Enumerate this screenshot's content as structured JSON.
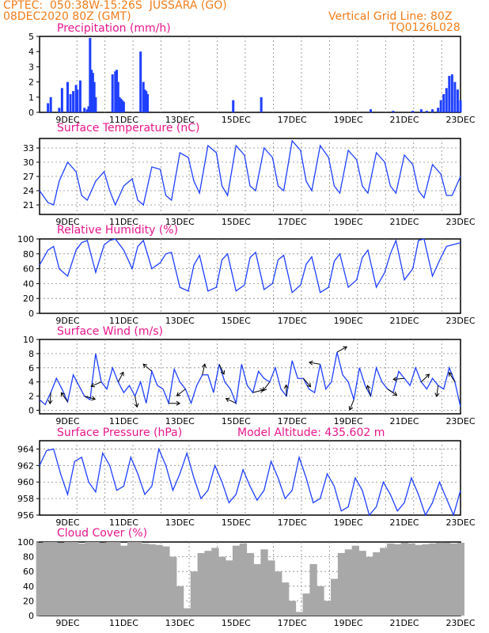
{
  "header": {
    "line1": "CPTEC:  050:38W-15:26S  JUSSARA (GO)",
    "line2": "08DEC2020 80Z (GMT)",
    "right1": "Vertical Grid Line: 80Z",
    "right2": "TQ0126L028"
  },
  "model_altitude": "Model Altitude: 435.602 m",
  "colors": {
    "header": "#f07d1a",
    "title": "#e8168c",
    "series": "#1f3fff",
    "cloud": "#a8a8a8"
  },
  "chart_data": [
    {
      "type": "bar",
      "title": "Precipitation (mm/h)",
      "x_tick_labels": [
        "9DEC",
        "11DEC",
        "13DEC",
        "15DEC",
        "17DEC",
        "19DEC",
        "21DEC",
        "23DEC"
      ],
      "yticks": [
        0,
        1,
        2,
        3,
        4,
        5
      ],
      "ylim": [
        0,
        5
      ],
      "x_days": [
        8.3,
        8.4,
        8.7,
        8.8,
        9.0,
        9.1,
        9.2,
        9.3,
        9.35,
        9.45,
        9.6,
        9.7,
        9.75,
        9.8,
        9.85,
        9.9,
        9.95,
        10.0,
        10.6,
        10.7,
        10.75,
        10.8,
        10.85,
        10.9,
        10.95,
        11.0,
        11.6,
        11.7,
        11.75,
        11.8,
        11.85,
        14.9,
        15.9,
        19.8,
        20.6,
        21.3,
        21.6,
        21.8,
        22.0,
        22.2,
        22.3,
        22.4,
        22.5,
        22.6,
        22.7,
        22.8,
        22.9,
        23.0
      ],
      "values": [
        0.6,
        1.0,
        0.3,
        1.6,
        2.0,
        1.2,
        1.4,
        1.8,
        1.5,
        2.1,
        0.3,
        0.2,
        0.4,
        4.9,
        2.8,
        2.6,
        2.0,
        1.0,
        2.5,
        2.7,
        2.8,
        2.0,
        1.0,
        0.9,
        0.8,
        0.7,
        4.0,
        2.0,
        1.5,
        1.4,
        1.2,
        0.8,
        1.0,
        0.2,
        0.1,
        0.1,
        0.2,
        0.1,
        0.2,
        0.3,
        0.8,
        1.2,
        1.6,
        2.4,
        2.5,
        2.0,
        1.5,
        0.8
      ]
    },
    {
      "type": "line",
      "title": "Surface Temperature (nC)",
      "x_tick_labels": [
        "9DEC",
        "11DEC",
        "13DEC",
        "15DEC",
        "17DEC",
        "19DEC",
        "21DEC",
        "23DEC"
      ],
      "yticks": [
        21,
        24,
        27,
        30,
        33
      ],
      "ylim": [
        19,
        35
      ],
      "x_days": [
        8.0,
        8.3,
        8.5,
        8.7,
        9.0,
        9.3,
        9.5,
        9.7,
        10.0,
        10.3,
        10.5,
        10.7,
        11.0,
        11.3,
        11.5,
        11.7,
        12.0,
        12.3,
        12.5,
        12.7,
        13.0,
        13.3,
        13.5,
        13.7,
        14.0,
        14.3,
        14.5,
        14.7,
        15.0,
        15.3,
        15.5,
        15.7,
        16.0,
        16.3,
        16.5,
        16.7,
        17.0,
        17.3,
        17.5,
        17.7,
        18.0,
        18.3,
        18.5,
        18.7,
        19.0,
        19.3,
        19.5,
        19.7,
        20.0,
        20.3,
        20.5,
        20.7,
        21.0,
        21.3,
        21.5,
        21.7,
        22.0,
        22.3,
        22.5,
        22.7,
        23.0
      ],
      "values": [
        24.0,
        21.5,
        21.0,
        26.0,
        30.0,
        28.0,
        23.0,
        22.0,
        26.0,
        28.0,
        24.0,
        21.0,
        25.0,
        26.5,
        22.0,
        21.0,
        29.0,
        28.5,
        23.0,
        22.0,
        32.0,
        31.0,
        26.0,
        23.5,
        33.5,
        32.0,
        25.0,
        23.0,
        33.5,
        31.5,
        25.0,
        24.0,
        33.0,
        31.0,
        25.0,
        24.0,
        34.5,
        32.5,
        26.0,
        24.0,
        33.5,
        31.0,
        25.0,
        23.5,
        32.5,
        30.5,
        25.0,
        23.5,
        32.0,
        30.0,
        25.0,
        23.5,
        31.5,
        29.5,
        24.0,
        22.5,
        29.5,
        27.5,
        23.0,
        23.0,
        27.0
      ]
    },
    {
      "type": "line",
      "title": "Relative Humidity (%)",
      "x_tick_labels": [
        "9DEC",
        "11DEC",
        "13DEC",
        "15DEC",
        "17DEC",
        "19DEC",
        "21DEC",
        "23DEC"
      ],
      "yticks": [
        0,
        20,
        40,
        60,
        80,
        100
      ],
      "ylim": [
        0,
        100
      ],
      "x_days": [
        8.0,
        8.3,
        8.5,
        8.7,
        9.0,
        9.3,
        9.5,
        9.7,
        10.0,
        10.3,
        10.5,
        10.7,
        11.0,
        11.3,
        11.5,
        11.7,
        12.0,
        12.3,
        12.5,
        12.7,
        13.0,
        13.3,
        13.5,
        13.7,
        14.0,
        14.3,
        14.5,
        14.7,
        15.0,
        15.3,
        15.5,
        15.7,
        16.0,
        16.3,
        16.5,
        16.7,
        17.0,
        17.3,
        17.5,
        17.7,
        18.0,
        18.3,
        18.5,
        18.7,
        19.0,
        19.3,
        19.5,
        19.7,
        20.0,
        20.3,
        20.5,
        20.7,
        21.0,
        21.3,
        21.5,
        21.7,
        22.0,
        22.3,
        22.5,
        22.7,
        23.0
      ],
      "values": [
        65.0,
        85.0,
        90.0,
        60.0,
        50.0,
        85.0,
        95.0,
        98.0,
        55.0,
        92.0,
        98.0,
        100.0,
        85.0,
        60.0,
        90.0,
        98.0,
        60.0,
        68.0,
        80.0,
        82.0,
        35.0,
        30.0,
        65.0,
        78.0,
        30.0,
        35.0,
        72.0,
        80.0,
        30.0,
        38.0,
        75.0,
        82.0,
        32.0,
        40.0,
        72.0,
        78.0,
        28.0,
        38.0,
        66.0,
        76.0,
        28.0,
        35.0,
        70.0,
        80.0,
        35.0,
        45.0,
        75.0,
        85.0,
        35.0,
        55.0,
        80.0,
        98.0,
        45.0,
        60.0,
        98.0,
        100.0,
        50.0,
        75.0,
        90.0,
        92.0,
        95.0
      ]
    },
    {
      "type": "line",
      "title": "Surface Wind (m/s)",
      "x_tick_labels": [
        "9DEC",
        "11DEC",
        "13DEC",
        "15DEC",
        "17DEC",
        "19DEC",
        "21DEC",
        "23DEC"
      ],
      "yticks": [
        0,
        2,
        4,
        6,
        8,
        10
      ],
      "ylim": [
        -0.5,
        10
      ],
      "x_days": [
        8.0,
        8.2,
        8.4,
        8.6,
        8.8,
        9.0,
        9.2,
        9.4,
        9.6,
        9.8,
        10.0,
        10.2,
        10.4,
        10.6,
        10.8,
        11.0,
        11.2,
        11.4,
        11.6,
        11.8,
        12.0,
        12.2,
        12.4,
        12.6,
        12.8,
        13.0,
        13.2,
        13.4,
        13.6,
        13.8,
        14.0,
        14.2,
        14.4,
        14.6,
        14.8,
        15.0,
        15.2,
        15.4,
        15.6,
        15.8,
        16.0,
        16.2,
        16.4,
        16.6,
        16.8,
        17.0,
        17.2,
        17.4,
        17.6,
        17.8,
        18.0,
        18.2,
        18.4,
        18.6,
        18.8,
        19.0,
        19.2,
        19.4,
        19.6,
        19.8,
        20.0,
        20.2,
        20.4,
        20.6,
        20.8,
        21.0,
        21.2,
        21.4,
        21.6,
        21.8,
        22.0,
        22.2,
        22.4,
        22.6,
        22.8,
        23.0
      ],
      "values": [
        1.5,
        0.8,
        2.5,
        4.5,
        3.0,
        1.2,
        5.0,
        3.5,
        2.0,
        1.5,
        8.0,
        4.0,
        3.0,
        6.0,
        4.0,
        2.5,
        3.5,
        2.0,
        4.0,
        1.0,
        5.5,
        3.5,
        3.0,
        1.0,
        5.8,
        4.0,
        3.0,
        1.0,
        3.5,
        5.0,
        5.0,
        2.5,
        6.5,
        4.0,
        3.0,
        1.0,
        6.5,
        3.5,
        2.5,
        5.5,
        4.5,
        4.0,
        6.0,
        3.0,
        2.0,
        7.0,
        4.5,
        4.5,
        3.0,
        2.5,
        6.5,
        3.0,
        4.0,
        8.2,
        5.0,
        4.0,
        1.5,
        6.0,
        3.5,
        2.0,
        6.0,
        4.0,
        3.0,
        2.5,
        5.5,
        4.5,
        3.5,
        6.0,
        4.0,
        3.0,
        4.5,
        3.5,
        3.0,
        6.0,
        4.0,
        0.5
      ]
    },
    {
      "type": "line",
      "title": "Surface Pressure (hPa)",
      "x_tick_labels": [
        "9DEC",
        "11DEC",
        "13DEC",
        "15DEC",
        "17DEC",
        "19DEC",
        "21DEC",
        "23DEC"
      ],
      "yticks": [
        956,
        958,
        960,
        962,
        964
      ],
      "ylim": [
        956,
        965
      ],
      "x_days": [
        8.0,
        8.25,
        8.5,
        8.75,
        9.0,
        9.25,
        9.5,
        9.75,
        10.0,
        10.25,
        10.5,
        10.75,
        11.0,
        11.25,
        11.5,
        11.75,
        12.0,
        12.25,
        12.5,
        12.75,
        13.0,
        13.25,
        13.5,
        13.75,
        14.0,
        14.25,
        14.5,
        14.75,
        15.0,
        15.25,
        15.5,
        15.75,
        16.0,
        16.25,
        16.5,
        16.75,
        17.0,
        17.25,
        17.5,
        17.75,
        18.0,
        18.25,
        18.5,
        18.75,
        19.0,
        19.25,
        19.5,
        19.75,
        20.0,
        20.25,
        20.5,
        20.75,
        21.0,
        21.25,
        21.5,
        21.75,
        22.0,
        22.25,
        22.5,
        22.75,
        23.0
      ],
      "values": [
        962.0,
        963.8,
        964.0,
        961.0,
        958.5,
        962.5,
        963.0,
        960.0,
        958.8,
        963.5,
        962.0,
        959.0,
        959.5,
        963.0,
        961.0,
        958.5,
        959.5,
        964.0,
        962.0,
        959.0,
        961.0,
        963.5,
        960.5,
        958.0,
        959.0,
        962.0,
        960.0,
        957.5,
        958.5,
        961.5,
        959.5,
        957.8,
        959.0,
        962.5,
        960.5,
        958.0,
        959.0,
        963.0,
        960.5,
        957.5,
        958.0,
        961.0,
        959.5,
        956.5,
        957.0,
        960.5,
        959.0,
        956.0,
        957.0,
        960.0,
        958.5,
        956.5,
        957.5,
        960.5,
        958.5,
        956.0,
        957.5,
        960.0,
        958.0,
        956.0,
        959.0
      ]
    },
    {
      "type": "bar",
      "title": "Cloud Cover (%)",
      "x_tick_labels": [
        "9DEC",
        "11DEC",
        "13DEC",
        "15DEC",
        "17DEC",
        "19DEC",
        "21DEC",
        "23DEC"
      ],
      "yticks": [
        0,
        20,
        40,
        60,
        80,
        100
      ],
      "ylim": [
        0,
        100
      ],
      "x_days": [
        8.0,
        8.25,
        8.5,
        8.75,
        9.0,
        9.25,
        9.5,
        9.75,
        10.0,
        10.25,
        10.5,
        10.75,
        11.0,
        11.25,
        11.5,
        11.75,
        12.0,
        12.25,
        12.5,
        12.75,
        13.0,
        13.25,
        13.5,
        13.75,
        14.0,
        14.25,
        14.5,
        14.75,
        15.0,
        15.25,
        15.5,
        15.75,
        16.0,
        16.25,
        16.5,
        16.75,
        17.0,
        17.25,
        17.5,
        17.75,
        18.0,
        18.25,
        18.5,
        18.75,
        19.0,
        19.25,
        19.5,
        19.75,
        20.0,
        20.25,
        20.5,
        20.75,
        21.0,
        21.25,
        21.5,
        21.75,
        22.0,
        22.25,
        22.5,
        22.75,
        23.0
      ],
      "values": [
        99,
        100,
        100,
        99,
        100,
        100,
        98,
        100,
        100,
        99,
        100,
        100,
        95,
        100,
        100,
        98,
        97,
        96,
        94,
        80,
        40,
        10,
        60,
        85,
        88,
        92,
        80,
        75,
        95,
        98,
        85,
        70,
        90,
        75,
        60,
        45,
        20,
        5,
        30,
        70,
        40,
        20,
        50,
        85,
        90,
        95,
        88,
        80,
        86,
        92,
        98,
        97,
        99,
        98,
        96,
        97,
        98,
        99,
        99,
        98,
        99
      ]
    }
  ]
}
